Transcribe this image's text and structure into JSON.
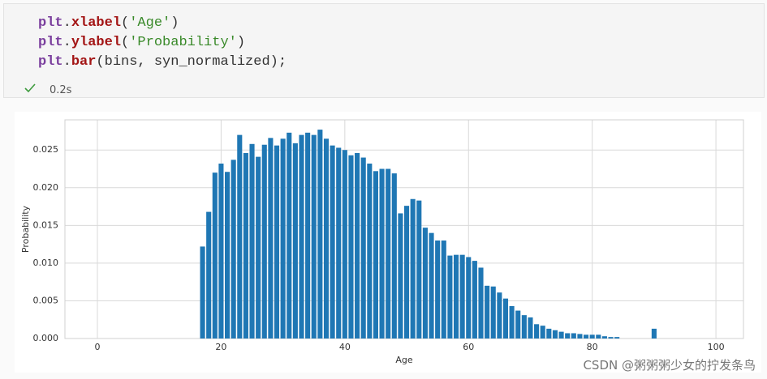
{
  "code_cell": {
    "lines": [
      [
        {
          "text": "plt",
          "color": "#7a3e9d"
        },
        {
          "text": ".",
          "color": "#333333"
        },
        {
          "text": "xlabel",
          "color": "#a31515"
        },
        {
          "text": "(",
          "color": "#333333"
        },
        {
          "text": "'Age'",
          "color": "#3a8a2a"
        },
        {
          "text": ")",
          "color": "#333333"
        }
      ],
      [
        {
          "text": "plt",
          "color": "#7a3e9d"
        },
        {
          "text": ".",
          "color": "#333333"
        },
        {
          "text": "ylabel",
          "color": "#a31515"
        },
        {
          "text": "(",
          "color": "#333333"
        },
        {
          "text": "'Probability'",
          "color": "#3a8a2a"
        },
        {
          "text": ")",
          "color": "#333333"
        }
      ],
      [
        {
          "text": "plt",
          "color": "#7a3e9d"
        },
        {
          "text": ".",
          "color": "#333333"
        },
        {
          "text": "bar",
          "color": "#a31515"
        },
        {
          "text": "(bins, syn_normalized);",
          "color": "#333333"
        }
      ]
    ],
    "status": "0.2s"
  },
  "chart_data": {
    "type": "bar",
    "xlabel": "Age",
    "ylabel": "Probability",
    "color": "#1f77b4",
    "bar_width": 0.8,
    "grid": true,
    "x": [
      17,
      18,
      19,
      20,
      21,
      22,
      23,
      24,
      25,
      26,
      27,
      28,
      29,
      30,
      31,
      32,
      33,
      34,
      35,
      36,
      37,
      38,
      39,
      40,
      41,
      42,
      43,
      44,
      45,
      46,
      47,
      48,
      49,
      50,
      51,
      52,
      53,
      54,
      55,
      56,
      57,
      58,
      59,
      60,
      61,
      62,
      63,
      64,
      65,
      66,
      67,
      68,
      69,
      70,
      71,
      72,
      73,
      74,
      75,
      76,
      77,
      78,
      79,
      80,
      81,
      82,
      83,
      84,
      90
    ],
    "values": [
      0.0122,
      0.0168,
      0.022,
      0.0232,
      0.0221,
      0.0237,
      0.027,
      0.0246,
      0.0258,
      0.0241,
      0.0257,
      0.0266,
      0.0256,
      0.0265,
      0.0273,
      0.0259,
      0.027,
      0.0273,
      0.027,
      0.0277,
      0.0265,
      0.0256,
      0.0253,
      0.025,
      0.0243,
      0.0246,
      0.024,
      0.0232,
      0.0222,
      0.0225,
      0.0225,
      0.0219,
      0.0166,
      0.0176,
      0.0185,
      0.0183,
      0.0147,
      0.014,
      0.013,
      0.013,
      0.011,
      0.0111,
      0.0111,
      0.0108,
      0.0103,
      0.0094,
      0.007,
      0.0069,
      0.0061,
      0.0053,
      0.0043,
      0.0037,
      0.0031,
      0.0028,
      0.0019,
      0.0017,
      0.0013,
      0.0011,
      0.0009,
      0.0007,
      0.0007,
      0.0006,
      0.0005,
      0.0005,
      0.0005,
      0.0003,
      0.0002,
      0.0002,
      0.0013
    ],
    "xlim": [
      -5.25,
      104.45
    ],
    "ylim": [
      0,
      0.029
    ],
    "xticks": [
      0,
      20,
      40,
      60,
      80,
      100
    ],
    "yticks": [
      {
        "value": 0,
        "label": "0.000"
      },
      {
        "value": 0.005,
        "label": "0.005"
      },
      {
        "value": 0.01,
        "label": "0.010"
      },
      {
        "value": 0.015,
        "label": "0.015"
      },
      {
        "value": 0.02,
        "label": "0.020"
      },
      {
        "value": 0.025,
        "label": "0.025"
      }
    ]
  },
  "watermark": "CSDN @粥粥粥少女的拧发条鸟"
}
